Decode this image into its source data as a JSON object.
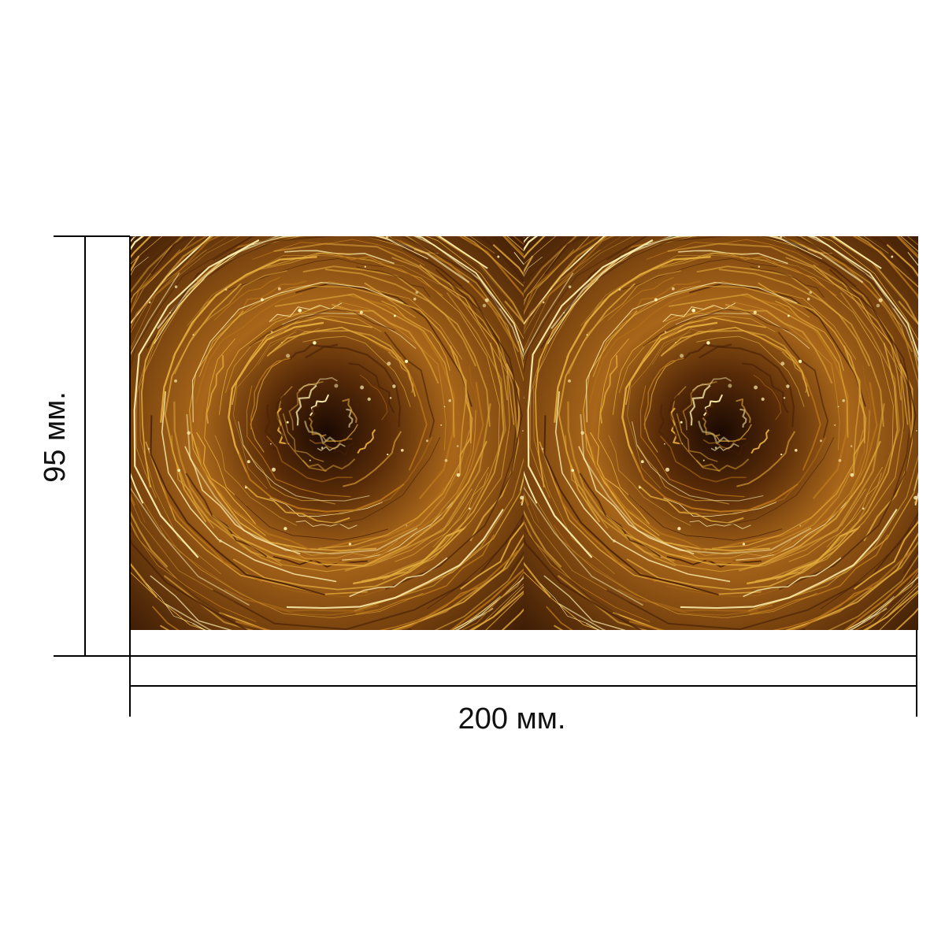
{
  "dimensions": {
    "height_label": "95 мм.",
    "width_label": "200 мм."
  },
  "artwork": {
    "motif": "golden-swirl-light-trails",
    "repeat_count": 2,
    "colors": {
      "background": "#2a1204",
      "dark": "#4a2208",
      "mid": "#b8741a",
      "gold": "#e0a83a",
      "highlight": "#fff2b0"
    }
  },
  "line_color": "#000000"
}
